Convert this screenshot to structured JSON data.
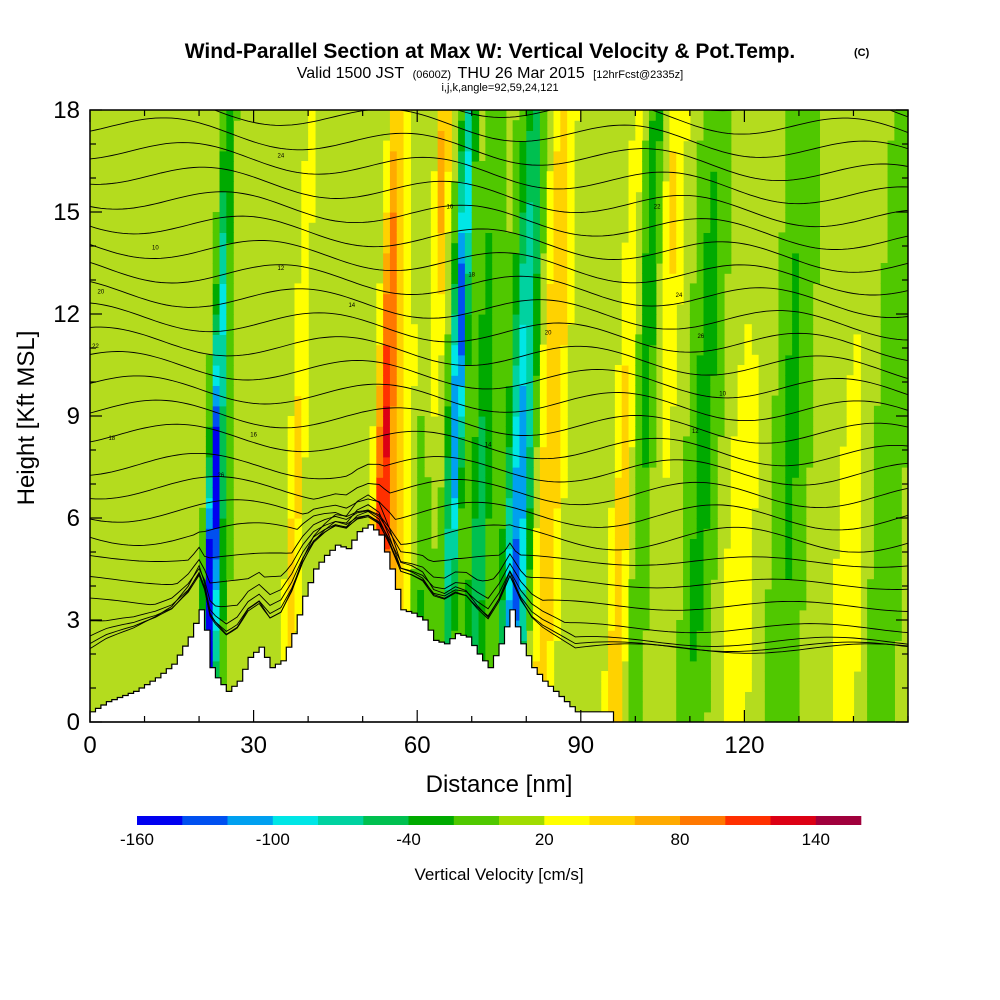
{
  "chart_data": {
    "type": "heatmap",
    "title": "Wind-Parallel Section at Max W: Vertical Velocity & Pot.Temp.",
    "title_mark": "(C)",
    "subtitle_valid": "Valid 1500 JST",
    "subtitle_utc": "(0600Z)",
    "subtitle_date": "THU 26 Mar 2015",
    "subtitle_fcst": "[12hrFcst@2335z]",
    "subtitle_indices": "i,j,k,angle=92,59,24,121",
    "xlabel": "Distance [nm]",
    "ylabel": "Height [Kft MSL]",
    "xlim": [
      0,
      150
    ],
    "ylim": [
      0,
      18
    ],
    "x_ticks": [
      0,
      30,
      60,
      90,
      120
    ],
    "y_ticks": [
      0,
      3,
      6,
      9,
      12,
      15,
      18
    ],
    "colorbar": {
      "label": "Vertical Velocity [cm/s]",
      "tick_labels": [
        "-160",
        "-100",
        "-40",
        "20",
        "80",
        "140"
      ],
      "tick_values": [
        -160,
        -100,
        -40,
        20,
        80,
        140
      ],
      "bounds": [
        -160,
        -140,
        -120,
        -100,
        -80,
        -60,
        -40,
        -20,
        0,
        20,
        40,
        60,
        80,
        100,
        120,
        140,
        160
      ],
      "colors": [
        "#0000f0",
        "#0050f0",
        "#00a0f0",
        "#00e6e6",
        "#00d2a0",
        "#00c050",
        "#00aa00",
        "#50c800",
        "#a0dc00",
        "#ffff00",
        "#ffd200",
        "#ffaa00",
        "#ff7800",
        "#ff3000",
        "#dc0014",
        "#a0003c",
        "#600090"
      ]
    },
    "terrain_profile": {
      "x": [
        0,
        3,
        8,
        12,
        15,
        18,
        20,
        21,
        22,
        23,
        25,
        27,
        29,
        31,
        33,
        35,
        37,
        39,
        41,
        43,
        45,
        47,
        49,
        51,
        53,
        55,
        57,
        59,
        61,
        63,
        65,
        67,
        69,
        71,
        73,
        75,
        77,
        79,
        81,
        83,
        85,
        87,
        89,
        92,
        95
      ],
      "y": [
        0.3,
        0.6,
        0.9,
        1.3,
        1.7,
        2.5,
        3.3,
        2.7,
        1.6,
        1.3,
        0.9,
        1.2,
        1.9,
        2.2,
        1.6,
        1.8,
        2.6,
        3.7,
        4.5,
        4.9,
        5.2,
        5.1,
        5.6,
        5.8,
        5.5,
        4.5,
        3.3,
        3.2,
        3.0,
        2.4,
        2.3,
        2.6,
        2.5,
        2.0,
        1.6,
        2.3,
        3.3,
        2.3,
        1.6,
        1.2,
        0.9,
        0.6,
        0.3,
        0.3,
        0.3
      ]
    },
    "theta_contour_labels": [
      "10",
      "12",
      "14",
      "16",
      "18",
      "20",
      "22",
      "24",
      "26"
    ]
  }
}
